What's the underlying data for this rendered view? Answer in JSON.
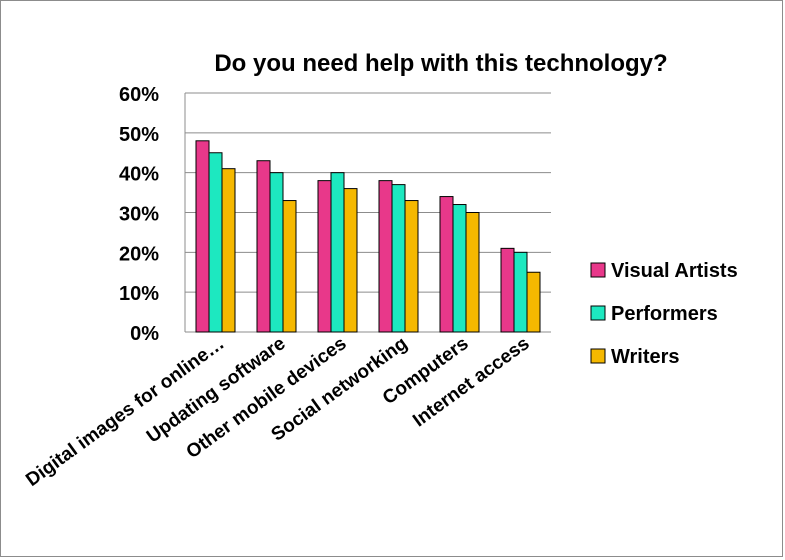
{
  "chart_data": {
    "type": "bar",
    "title": "Do you need help with this technology?",
    "categories": [
      "Digital images for online…",
      "Updating software",
      "Other mobile devices",
      "Social networking",
      "Computers",
      "Internet access"
    ],
    "series": [
      {
        "name": "Visual Artists",
        "color": "#e8388a",
        "values": [
          48,
          43,
          38,
          38,
          34,
          21
        ]
      },
      {
        "name": "Performers",
        "color": "#1de8c0",
        "values": [
          45,
          40,
          40,
          37,
          32,
          20
        ]
      },
      {
        "name": "Writers",
        "color": "#f5b800",
        "values": [
          41,
          33,
          36,
          33,
          30,
          15
        ]
      }
    ],
    "yticks": [
      "0%",
      "10%",
      "20%",
      "30%",
      "40%",
      "50%",
      "60%"
    ],
    "ylim": [
      0,
      60
    ],
    "grid": true,
    "legend_position": "right",
    "xlabel": "",
    "ylabel": ""
  }
}
